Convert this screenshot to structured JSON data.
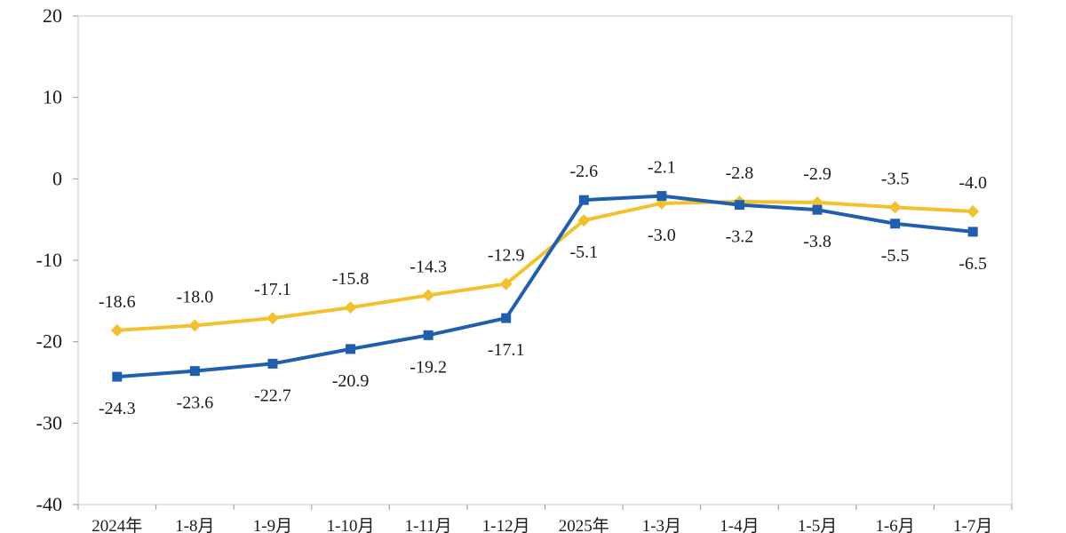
{
  "chart_data": {
    "type": "line",
    "categories": [
      "2024年",
      "1-8月",
      "1-9月",
      "1-10月",
      "1-11月",
      "1-12月",
      "2025年",
      "1-3月",
      "1-4月",
      "1-5月",
      "1-6月",
      "1-7月"
    ],
    "series": [
      {
        "name": "",
        "color": "#f2c12e",
        "marker": "diamond",
        "values": [
          -18.6,
          -18.0,
          -17.1,
          -15.8,
          -14.3,
          -12.9,
          -5.1,
          -3.0,
          -2.8,
          -2.9,
          -3.5,
          -4.0
        ],
        "labels": [
          "-18.6",
          "-18.0",
          "-17.1",
          "-15.8",
          "-14.3",
          "-12.9",
          "-5.1",
          "-3.0",
          "-2.8",
          "-2.9",
          "-3.5",
          "-4.0"
        ]
      },
      {
        "name": "",
        "color": "#1f5fae",
        "marker": "square",
        "values": [
          -24.3,
          -23.6,
          -22.7,
          -20.9,
          -19.2,
          -17.1,
          -2.6,
          -2.1,
          -3.2,
          -3.8,
          -5.5,
          -6.5
        ],
        "labels": [
          "-24.3",
          "-23.6",
          "-22.7",
          "-20.9",
          "-19.2",
          "-17.1",
          "-2.6",
          "-2.1",
          "-3.2",
          "-3.8",
          "-5.5",
          "-6.5"
        ]
      }
    ],
    "yticks": [
      "20",
      "10",
      "0",
      "-10",
      "-20",
      "-30",
      "-40"
    ],
    "ylim": [
      -40,
      20
    ],
    "grid": false,
    "legend": "none"
  }
}
